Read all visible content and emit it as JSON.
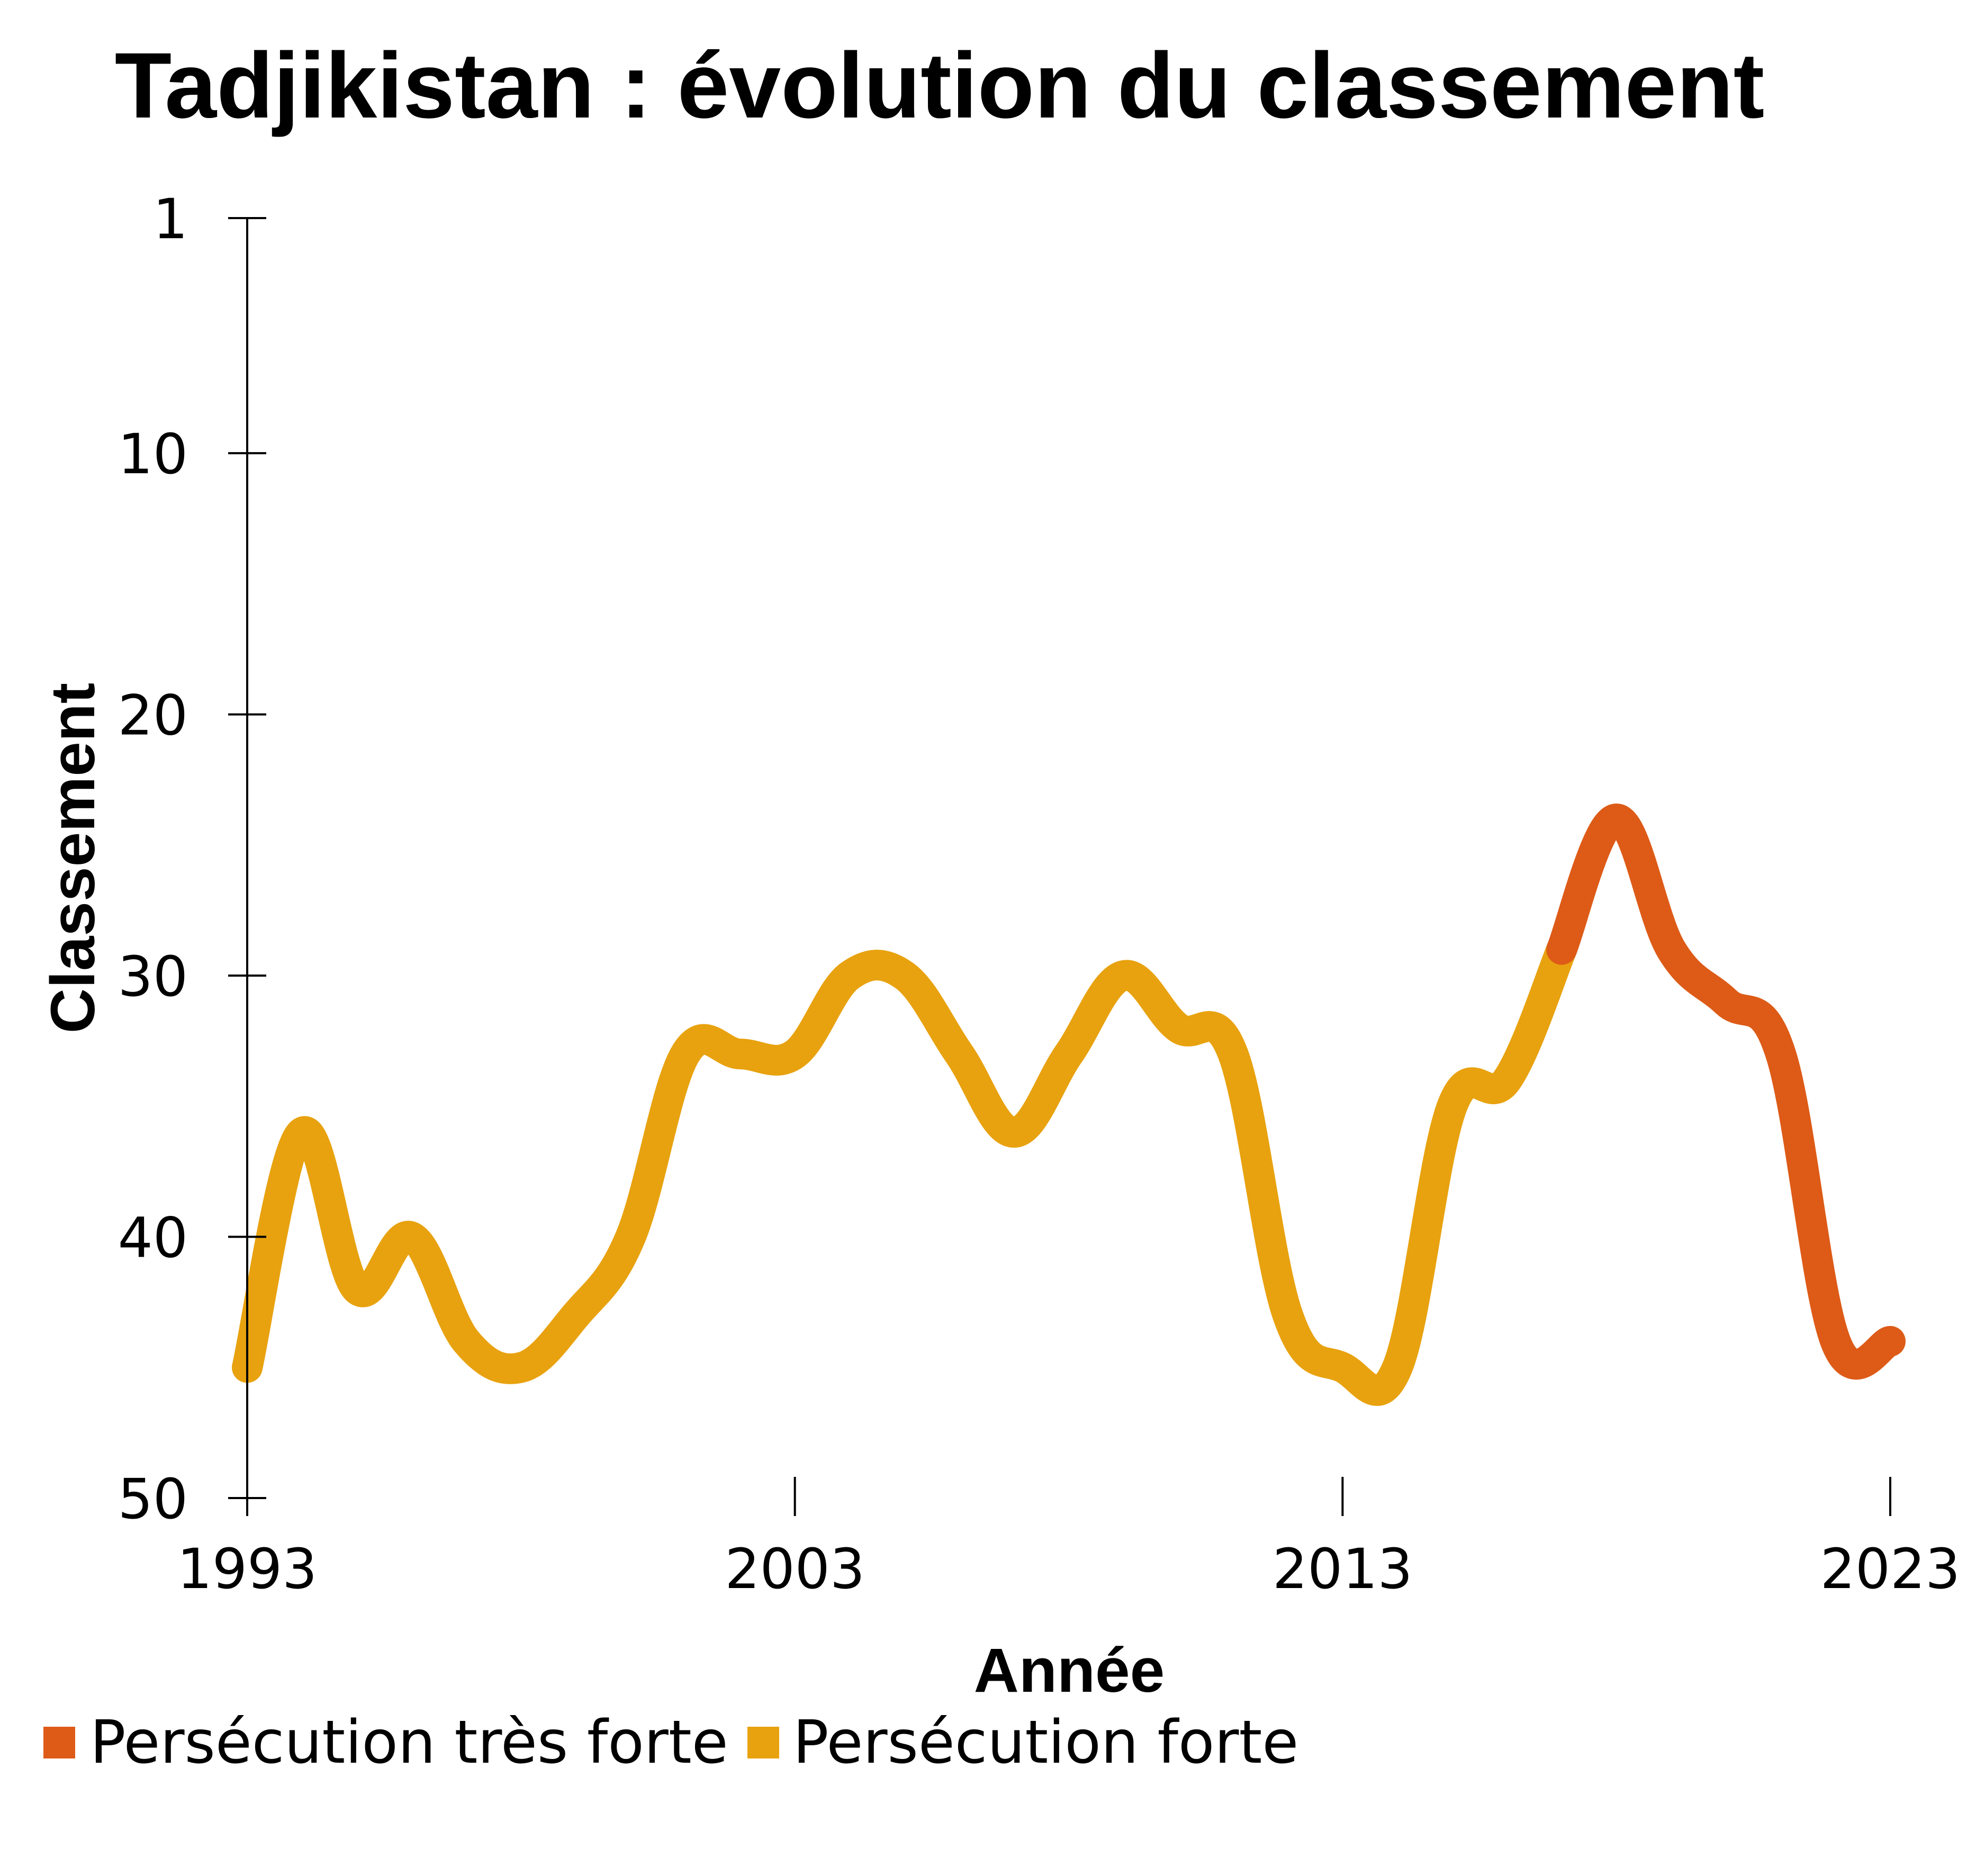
{
  "chart_data": {
    "type": "line",
    "title": "Tadjikistan : évolution du classement",
    "xlabel": "Année",
    "ylabel": "Classement",
    "xlim": [
      1993,
      2023
    ],
    "ylim": [
      1,
      50
    ],
    "y_inverted": true,
    "x_ticks": [
      "1993",
      "2003",
      "2013",
      "2023"
    ],
    "y_ticks": [
      "1",
      "10",
      "20",
      "30",
      "40",
      "50"
    ],
    "x_tick_values": [
      1993,
      2003,
      2013,
      2023
    ],
    "y_tick_values": [
      1,
      10,
      20,
      30,
      40,
      50
    ],
    "grid": false,
    "legend_position": "bottom-left",
    "series": [
      {
        "name": "Persécution forte",
        "color": "#E8A20F",
        "x": [
          1993,
          1994,
          1995,
          1996,
          1997,
          1998,
          1999,
          2000,
          2001,
          2002,
          2003,
          2004,
          2005,
          2006,
          2007,
          2008,
          2009,
          2010,
          2011,
          2012,
          2013,
          2014,
          2015,
          2016,
          2017
        ],
        "y": [
          45,
          36,
          42,
          40,
          44,
          45,
          43,
          40,
          33,
          33,
          33,
          30,
          30,
          33,
          36,
          33,
          30,
          32,
          33,
          43,
          45,
          45,
          35,
          34,
          29
        ]
      },
      {
        "name": "Persécution très forte",
        "color": "#DD5B17",
        "x": [
          2017,
          2018,
          2019,
          2020,
          2021,
          2022,
          2023
        ],
        "y": [
          29,
          24,
          29,
          31,
          33,
          44,
          44
        ]
      }
    ],
    "legend": [
      {
        "label": "Persécution très forte",
        "color": "#DD5B17"
      },
      {
        "label": "Persécution forte",
        "color": "#E8A20F"
      }
    ]
  }
}
